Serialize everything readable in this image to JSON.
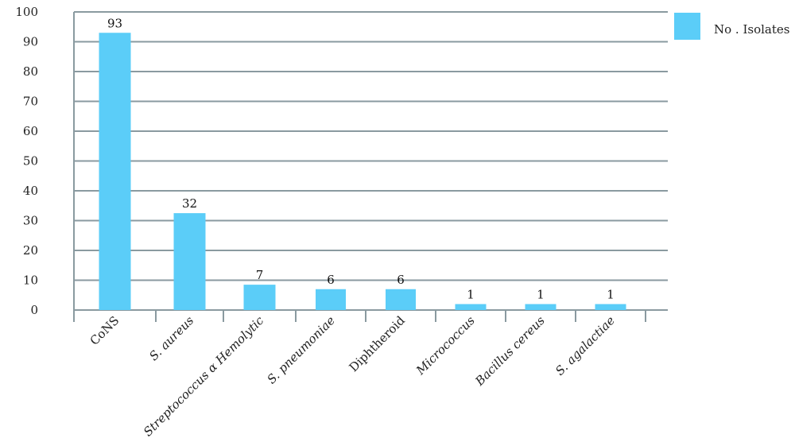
{
  "chart_data": {
    "type": "bar",
    "categories": [
      "CoNS",
      "S. aureus",
      "Streptococcus α Hemolytic",
      "S. pneumoniae",
      "Diphtheroid",
      "Micrococcus",
      "Bacillus cereus",
      "S. agalactiae"
    ],
    "italic": [
      false,
      true,
      true,
      true,
      false,
      true,
      true,
      true
    ],
    "series": [
      {
        "name": "No . Isolates",
        "values": [
          93,
          32,
          7,
          6,
          6,
          1,
          1,
          1
        ]
      }
    ],
    "display_heights": [
      93,
      32.5,
      8.5,
      7,
      7,
      2,
      2,
      2
    ],
    "ylim": [
      0,
      100
    ],
    "yticks": [
      0,
      10,
      20,
      30,
      40,
      50,
      60,
      70,
      80,
      90,
      100
    ],
    "grid": true,
    "legend_position": "top-right",
    "title": "",
    "xlabel": "",
    "ylabel": "",
    "colors": {
      "bar": "#5bcdf8",
      "grid": "#8a9aa0",
      "axis": "#8a9aa0",
      "text": "#222222"
    }
  }
}
